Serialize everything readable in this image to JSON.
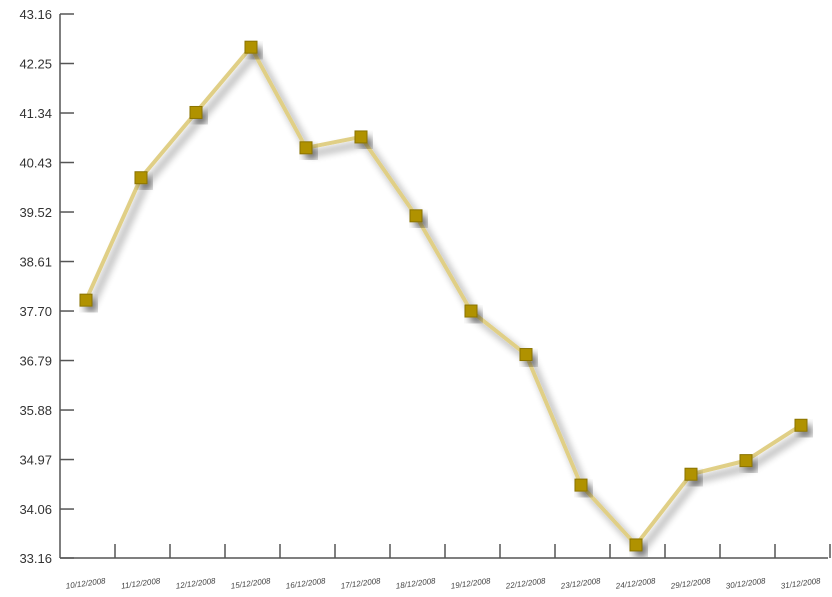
{
  "chart_data": {
    "type": "line",
    "title": "",
    "xlabel": "",
    "ylabel": "",
    "categories": [
      "10/12/2008",
      "11/12/2008",
      "12/12/2008",
      "15/12/2008",
      "16/12/2008",
      "17/12/2008",
      "18/12/2008",
      "19/12/2008",
      "22/12/2008",
      "23/12/2008",
      "24/12/2008",
      "29/12/2008",
      "30/12/2008",
      "31/12/2008"
    ],
    "yticks": [
      "33.16",
      "34.06",
      "34.97",
      "35.88",
      "36.79",
      "37.70",
      "38.61",
      "39.52",
      "40.43",
      "41.34",
      "42.25",
      "43.16"
    ],
    "ylim": [
      33.16,
      43.16
    ],
    "grid": false,
    "legend": "none",
    "series": [
      {
        "values": [
          37.9,
          40.15,
          41.35,
          42.55,
          40.7,
          40.9,
          39.45,
          37.7,
          36.9,
          34.5,
          33.4,
          34.7,
          34.95,
          35.6
        ]
      }
    ],
    "colors": {
      "line": "#e0cf86",
      "marker": "#b09200",
      "axis": "#555555"
    }
  }
}
